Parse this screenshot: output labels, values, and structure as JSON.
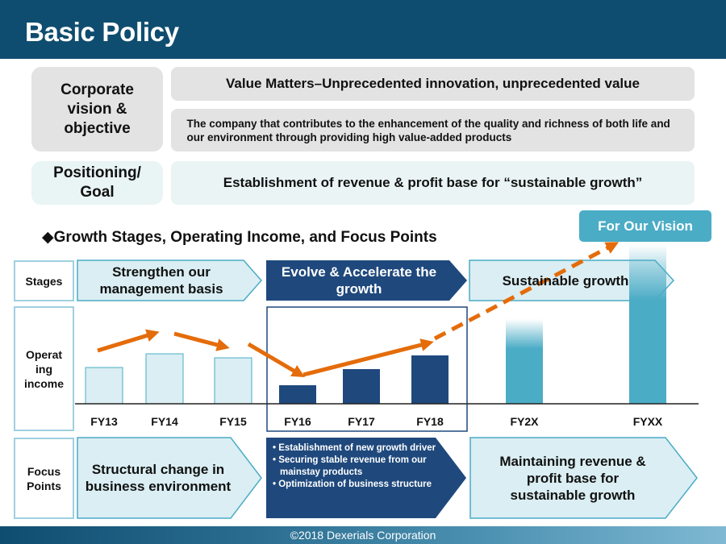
{
  "header": {
    "title": "Basic Policy"
  },
  "policy": {
    "vision_label": "Corporate vision & objective",
    "value_matters": "Value Matters–Unprecedented innovation, unprecedented value",
    "company_statement": "The company that contributes to the enhancement of the quality and richness of both life and our environment through providing high value-added products",
    "positioning_label": "Positioning/ Goal",
    "positioning_text": "Establishment of revenue & profit base for “sustainable growth”"
  },
  "section": {
    "heading": "◆Growth Stages, Operating Income, and Focus Points",
    "vision_badge": "For Our Vision"
  },
  "rows": {
    "stages": "Stages",
    "income": "Operat ing income",
    "focus": "Focus Points"
  },
  "stages": [
    {
      "label": "Strengthen our management basis"
    },
    {
      "label": "Evolve & Accelerate the growth"
    },
    {
      "label": "Sustainable growth"
    }
  ],
  "fiscal_years": [
    "FY13",
    "FY14",
    "FY15",
    "FY16",
    "FY17",
    "FY18",
    "FY2X",
    "FYXX"
  ],
  "focus": {
    "left": "Structural change in business environment",
    "middle_bullets": [
      "Establishment of new growth  driver",
      "Securing stable revenue from our mainstay products",
      "Optimization of business structure"
    ],
    "right": "Maintaining revenue & profit base for sustainable growth"
  },
  "colors": {
    "navy": "#1f497d",
    "light_blue": "#daeef3",
    "teal": "#4bacc6",
    "arrow_orange": "#e46c0a",
    "header": "#0f4d70"
  },
  "footer": {
    "copyright": "©2018 Dexerials Corporation"
  }
}
